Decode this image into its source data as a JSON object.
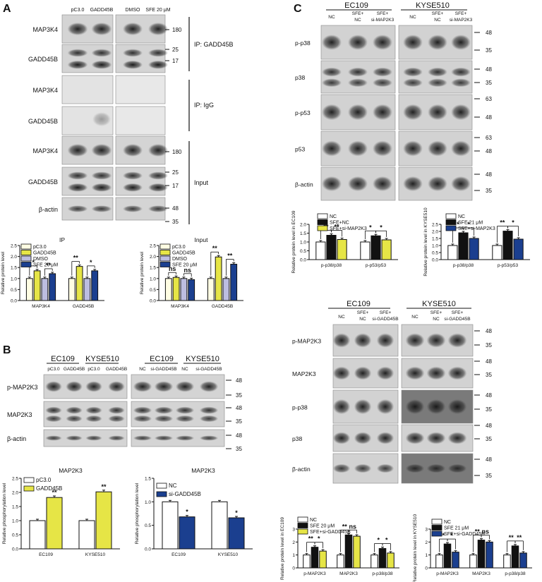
{
  "panels": {
    "A": {
      "letter": "A",
      "lanes": [
        "pC3.0",
        "GADD45B",
        "DMSO",
        "SFE 20 μM"
      ],
      "rows": [
        "MAP3K4",
        "GADD45B",
        "MAP3K4",
        "GADD45B",
        "MAP3K4",
        "GADD45B",
        "β-actin"
      ],
      "row_band_styles": [
        "thick",
        "split",
        "none",
        "faint",
        "thick",
        "split",
        "thin"
      ],
      "mw": [
        "180",
        "25",
        "17",
        "180",
        "25",
        "17",
        "48",
        "35"
      ],
      "groups": [
        "IP: GADD45B",
        "IP: IgG",
        "Input"
      ],
      "charts": [
        {
          "title": "IP",
          "ylabel": "Relative protein level",
          "ymax": 2.5,
          "yticks": [
            "0.0",
            "0.5",
            "1.0",
            "1.5",
            "2.0",
            "2.5"
          ],
          "categories": [
            "MAP3K4",
            "GADD45B"
          ],
          "series": [
            {
              "name": "pC3.0",
              "color": "#fffde3",
              "values": [
                1.0,
                1.0
              ]
            },
            {
              "name": "GADD45B",
              "color": "#e6e546",
              "values": [
                1.35,
                1.55
              ]
            },
            {
              "name": "DMSO",
              "color": "#bcbde0",
              "values": [
                1.0,
                1.0
              ]
            },
            {
              "name": "SFE 20 μM",
              "color": "#1b3f8f",
              "values": [
                1.22,
                1.35
              ]
            }
          ],
          "sig": [
            {
              "group": 0,
              "a": 0,
              "b": 1,
              "label": "*"
            },
            {
              "group": 0,
              "a": 2,
              "b": 3,
              "label": "**"
            },
            {
              "group": 1,
              "a": 0,
              "b": 1,
              "label": "**"
            },
            {
              "group": 1,
              "a": 2,
              "b": 3,
              "label": "*"
            }
          ]
        },
        {
          "title": "Input",
          "ylabel": "Relative protein level",
          "ymax": 2.5,
          "yticks": [
            "0.0",
            "0.5",
            "1.0",
            "1.5",
            "2.0",
            "2.5"
          ],
          "categories": [
            "MAP3K4",
            "GADD45B"
          ],
          "series": [
            {
              "name": "pC3.0",
              "color": "#fffde3",
              "values": [
                1.0,
                1.0
              ]
            },
            {
              "name": "GADD45B",
              "color": "#e6e546",
              "values": [
                1.05,
                1.98
              ]
            },
            {
              "name": "DMSO",
              "color": "#bcbde0",
              "values": [
                1.0,
                1.0
              ]
            },
            {
              "name": "SFE 20 μM",
              "color": "#1b3f8f",
              "values": [
                0.95,
                1.65
              ]
            }
          ],
          "sig": [
            {
              "group": 0,
              "a": 0,
              "b": 1,
              "label": "ns"
            },
            {
              "group": 0,
              "a": 2,
              "b": 3,
              "label": "ns"
            },
            {
              "group": 1,
              "a": 0,
              "b": 1,
              "label": "**"
            },
            {
              "group": 1,
              "a": 2,
              "b": 3,
              "label": "**"
            }
          ]
        }
      ]
    },
    "B": {
      "letter": "B",
      "cells": [
        "EC109",
        "KYSE510",
        "EC109",
        "KYSE510"
      ],
      "lanes": [
        "pC3.0",
        "GADD45B",
        "pC3.0",
        "GADD45B",
        "NC",
        "si-GADD45B",
        "NC",
        "si-GADD45B"
      ],
      "rows": [
        "p-MAP2K3",
        "MAP2K3",
        "β-actin"
      ],
      "mw": [
        "48",
        "35",
        "48",
        "35",
        "48",
        "35"
      ],
      "charts": [
        {
          "title": "MAP2K3",
          "ylabel": "Relative phosphorylation level",
          "ymax": 2.5,
          "yticks": [
            "0.0",
            "0.5",
            "1.0",
            "1.5",
            "2.0",
            "2.5"
          ],
          "categories": [
            "EC109",
            "KYSE510"
          ],
          "series": [
            {
              "name": "pC3.0",
              "color": "#ffffff",
              "values": [
                1.0,
                1.0
              ]
            },
            {
              "name": "GADD45B",
              "color": "#e6e546",
              "values": [
                1.82,
                2.02
              ]
            }
          ],
          "marks": [
            "**",
            "**"
          ]
        },
        {
          "title": "MAP2K3",
          "ylabel": "Relative phosphorylation level",
          "ymax": 1.5,
          "yticks": [
            "0.0",
            "0.5",
            "1.0",
            "1.5"
          ],
          "categories": [
            "EC109",
            "KYSE510"
          ],
          "series": [
            {
              "name": "NC",
              "color": "#ffffff",
              "values": [
                1.0,
                1.0
              ]
            },
            {
              "name": "si-GADD45B",
              "color": "#1b3f8f",
              "values": [
                0.68,
                0.66
              ]
            }
          ],
          "marks": [
            "*",
            "*"
          ]
        }
      ]
    },
    "C": {
      "letter": "C",
      "top": {
        "cells": [
          "EC109",
          "KYSE510"
        ],
        "lanes": [
          "NC",
          "SFE+",
          "NC",
          "SFE+",
          "si-MAP2K3",
          "NC",
          "SFE+",
          "NC",
          "SFE+",
          "si-MAP2K3"
        ],
        "rows": [
          "p-p38",
          "p38",
          "p-p53",
          "p53",
          "β-actin"
        ],
        "mw": [
          "48",
          "35",
          "48",
          "35",
          "63",
          "48",
          "63",
          "48",
          "48",
          "35"
        ],
        "charts": [
          {
            "ylabel": "Relative protein level in EC109",
            "ymax": 2.0,
            "yticks": [
              "0.0",
              "0.5",
              "1.0",
              "1.5",
              "2.0"
            ],
            "categories": [
              "p-p38/p38",
              "p-p53/p53"
            ],
            "series": [
              {
                "name": "NC",
                "color": "#ffffff",
                "values": [
                  1.0,
                  1.0
                ]
              },
              {
                "name": "SFE+NC",
                "color": "#111111",
                "values": [
                  1.38,
                  1.35
                ]
              },
              {
                "name": "SFE+si-MAP2K3",
                "color": "#e6e546",
                "values": [
                  1.14,
                  1.12
                ]
              }
            ],
            "sig": [
              {
                "group": 0,
                "a": 0,
                "b": 1,
                "label": "**"
              },
              {
                "group": 0,
                "a": 1,
                "b": 2,
                "label": "**"
              },
              {
                "group": 1,
                "a": 0,
                "b": 1,
                "label": "*"
              },
              {
                "group": 1,
                "a": 1,
                "b": 2,
                "label": "*"
              }
            ]
          },
          {
            "ylabel": "Relative protein level in KYSE510",
            "ymax": 2.5,
            "yticks": [
              "0.0",
              "0.5",
              "1.0",
              "1.5",
              "2.0",
              "2.5"
            ],
            "categories": [
              "p-p38/p38",
              "p-p53/p53"
            ],
            "series": [
              {
                "name": "NC",
                "color": "#ffffff",
                "values": [
                  1.0,
                  1.0
                ]
              },
              {
                "name": "SFE 21 μM",
                "color": "#111111",
                "values": [
                  1.9,
                  2.02
                ]
              },
              {
                "name": "SFE+si-MAP2K3",
                "color": "#1b3f8f",
                "values": [
                  1.5,
                  1.45
                ]
              }
            ],
            "sig": [
              {
                "group": 0,
                "a": 0,
                "b": 1,
                "label": "*"
              },
              {
                "group": 0,
                "a": 1,
                "b": 2,
                "label": "*"
              },
              {
                "group": 1,
                "a": 0,
                "b": 1,
                "label": "**"
              },
              {
                "group": 1,
                "a": 1,
                "b": 2,
                "label": "*"
              }
            ]
          }
        ]
      },
      "bottom": {
        "cells": [
          "EC109",
          "KYSE510"
        ],
        "lanes": [
          "NC",
          "SFE+",
          "NC",
          "SFE+",
          "si-GADD45B",
          "NC",
          "SFE+",
          "NC",
          "SFE+",
          "si-GADD45B"
        ],
        "rows": [
          "p-MAP2K3",
          "MAP2K3",
          "p-p38",
          "p38",
          "β-actin"
        ],
        "mw": [
          "48",
          "35",
          "48",
          "35",
          "48",
          "35",
          "48",
          "35",
          "48",
          "35"
        ],
        "charts": [
          {
            "ylabel": "Relative protein level in EC109",
            "ymax": 3,
            "yticks": [
              "0",
              "1",
              "2",
              "3"
            ],
            "categories": [
              "p-MAP2K3",
              "MAP2K3",
              "p-p38/p38"
            ],
            "series": [
              {
                "name": "NC",
                "color": "#ffffff",
                "values": [
                  1.0,
                  1.0,
                  1.0
                ]
              },
              {
                "name": "SFE 20 μM",
                "color": "#111111",
                "values": [
                  1.6,
                  2.55,
                  1.5
                ]
              },
              {
                "name": "SFE+si-GADD45B",
                "color": "#e6e546",
                "values": [
                  1.3,
                  2.45,
                  1.15
                ]
              }
            ],
            "sig": [
              {
                "group": 0,
                "a": 0,
                "b": 1,
                "label": "**"
              },
              {
                "group": 0,
                "a": 1,
                "b": 2,
                "label": "*"
              },
              {
                "group": 1,
                "a": 0,
                "b": 1,
                "label": "**"
              },
              {
                "group": 1,
                "a": 1,
                "b": 2,
                "label": "ns"
              },
              {
                "group": 2,
                "a": 0,
                "b": 1,
                "label": "*"
              },
              {
                "group": 2,
                "a": 1,
                "b": 2,
                "label": "*"
              }
            ]
          },
          {
            "ylabel": "Relative protein level in KYSE510",
            "ymax": 3,
            "yticks": [
              "0",
              "1",
              "2",
              "3"
            ],
            "categories": [
              "p-MAP2K3",
              "MAP2K3",
              "p-p38/p38"
            ],
            "series": [
              {
                "name": "NC",
                "color": "#ffffff",
                "values": [
                  1.0,
                  1.0,
                  1.0
                ]
              },
              {
                "name": "SFE 21  μM",
                "color": "#111111",
                "values": [
                  1.85,
                  2.15,
                  1.7
                ]
              },
              {
                "name": "SFE+si-GADD45B",
                "color": "#1b3f8f",
                "values": [
                  1.22,
                  2.0,
                  1.15
                ]
              }
            ],
            "sig": [
              {
                "group": 0,
                "a": 0,
                "b": 1,
                "label": "*"
              },
              {
                "group": 0,
                "a": 1,
                "b": 2,
                "label": "*"
              },
              {
                "group": 1,
                "a": 0,
                "b": 1,
                "label": "**"
              },
              {
                "group": 1,
                "a": 1,
                "b": 2,
                "label": "ns"
              },
              {
                "group": 2,
                "a": 0,
                "b": 1,
                "label": "**"
              },
              {
                "group": 2,
                "a": 1,
                "b": 2,
                "label": "**"
              }
            ]
          }
        ]
      }
    }
  },
  "chart_data": [
    {
      "type": "bar",
      "panel": "A",
      "title": "IP",
      "categories": [
        "MAP3K4",
        "GADD45B"
      ],
      "ylabel": "Relative protein level",
      "ylim": [
        0,
        2.5
      ],
      "series": [
        {
          "name": "pC3.0",
          "values": [
            1.0,
            1.0
          ]
        },
        {
          "name": "GADD45B",
          "values": [
            1.35,
            1.55
          ]
        },
        {
          "name": "DMSO",
          "values": [
            1.0,
            1.0
          ]
        },
        {
          "name": "SFE 20 μM",
          "values": [
            1.22,
            1.35
          ]
        }
      ]
    },
    {
      "type": "bar",
      "panel": "A",
      "title": "Input",
      "categories": [
        "MAP3K4",
        "GADD45B"
      ],
      "ylabel": "Relative protein level",
      "ylim": [
        0,
        2.5
      ],
      "series": [
        {
          "name": "pC3.0",
          "values": [
            1.0,
            1.0
          ]
        },
        {
          "name": "GADD45B",
          "values": [
            1.05,
            1.98
          ]
        },
        {
          "name": "DMSO",
          "values": [
            1.0,
            1.0
          ]
        },
        {
          "name": "SFE 20 μM",
          "values": [
            0.95,
            1.65
          ]
        }
      ]
    },
    {
      "type": "bar",
      "panel": "B",
      "title": "MAP2K3",
      "categories": [
        "EC109",
        "KYSE510"
      ],
      "ylabel": "Relative phosphorylation level",
      "ylim": [
        0,
        2.5
      ],
      "series": [
        {
          "name": "pC3.0",
          "values": [
            1.0,
            1.0
          ]
        },
        {
          "name": "GADD45B",
          "values": [
            1.82,
            2.02
          ]
        }
      ]
    },
    {
      "type": "bar",
      "panel": "B",
      "title": "MAP2K3",
      "categories": [
        "EC109",
        "KYSE510"
      ],
      "ylabel": "Relative phosphorylation level",
      "ylim": [
        0,
        1.5
      ],
      "series": [
        {
          "name": "NC",
          "values": [
            1.0,
            1.0
          ]
        },
        {
          "name": "si-GADD45B",
          "values": [
            0.68,
            0.66
          ]
        }
      ]
    },
    {
      "type": "bar",
      "panel": "C",
      "categories": [
        "p-p38/p38",
        "p-p53/p53"
      ],
      "ylabel": "Relative protein level in EC109",
      "ylim": [
        0,
        2.0
      ],
      "series": [
        {
          "name": "NC",
          "values": [
            1.0,
            1.0
          ]
        },
        {
          "name": "SFE+NC",
          "values": [
            1.38,
            1.35
          ]
        },
        {
          "name": "SFE+si-MAP2K3",
          "values": [
            1.14,
            1.12
          ]
        }
      ]
    },
    {
      "type": "bar",
      "panel": "C",
      "categories": [
        "p-p38/p38",
        "p-p53/p53"
      ],
      "ylabel": "Relative protein level in KYSE510",
      "ylim": [
        0,
        2.5
      ],
      "series": [
        {
          "name": "NC",
          "values": [
            1.0,
            1.0
          ]
        },
        {
          "name": "SFE 21 μM",
          "values": [
            1.9,
            2.02
          ]
        },
        {
          "name": "SFE+si-MAP2K3",
          "values": [
            1.5,
            1.45
          ]
        }
      ]
    },
    {
      "type": "bar",
      "panel": "C",
      "categories": [
        "p-MAP2K3",
        "MAP2K3",
        "p-p38/p38"
      ],
      "ylabel": "Relative protein level in EC109",
      "ylim": [
        0,
        3
      ],
      "series": [
        {
          "name": "NC",
          "values": [
            1.0,
            1.0,
            1.0
          ]
        },
        {
          "name": "SFE 20 μM",
          "values": [
            1.6,
            2.55,
            1.5
          ]
        },
        {
          "name": "SFE+si-GADD45B",
          "values": [
            1.3,
            2.45,
            1.15
          ]
        }
      ]
    },
    {
      "type": "bar",
      "panel": "C",
      "categories": [
        "p-MAP2K3",
        "MAP2K3",
        "p-p38/p38"
      ],
      "ylabel": "Relative protein level in KYSE510",
      "ylim": [
        0,
        3
      ],
      "series": [
        {
          "name": "NC",
          "values": [
            1.0,
            1.0,
            1.0
          ]
        },
        {
          "name": "SFE 21  μM",
          "values": [
            1.85,
            2.15,
            1.7
          ]
        },
        {
          "name": "SFE+si-GADD45B",
          "values": [
            1.22,
            2.0,
            1.15
          ]
        }
      ]
    }
  ]
}
